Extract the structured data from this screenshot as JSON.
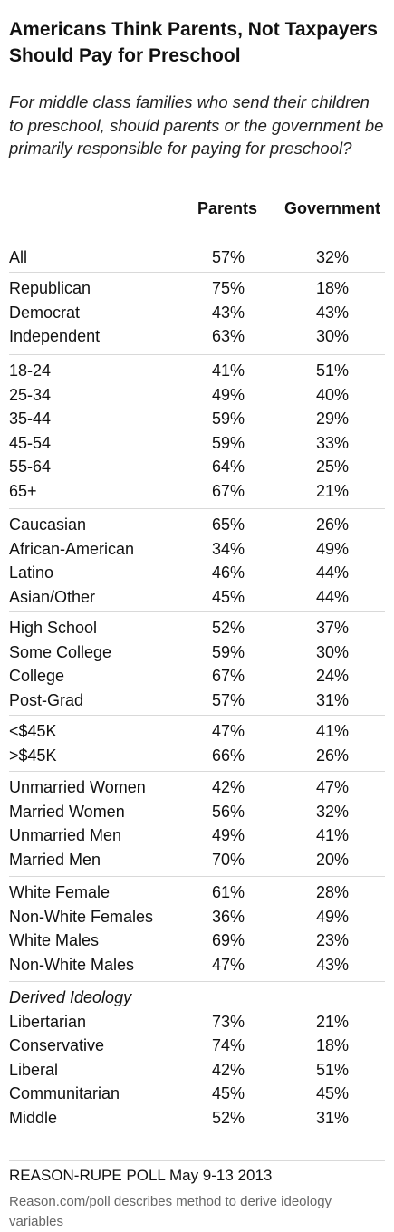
{
  "chart_data": {
    "type": "table",
    "title": "Americans Think Parents, Not Taxpayers Should Pay for Preschool",
    "subtitle": "For middle class families who send their children to preschool, should parents or the government be primarily responsible for paying for preschool?",
    "columns": [
      "Parents",
      "Government"
    ],
    "groups": [
      {
        "heading": "",
        "rows": [
          {
            "label": "All",
            "values": [
              "57%",
              "32%"
            ]
          }
        ]
      },
      {
        "heading": "",
        "rows": [
          {
            "label": "Republican",
            "values": [
              "75%",
              "18%"
            ]
          },
          {
            "label": "Democrat",
            "values": [
              "43%",
              "43%"
            ]
          },
          {
            "label": "Independent",
            "values": [
              "63%",
              "30%"
            ]
          }
        ]
      },
      {
        "heading": "",
        "rows": [
          {
            "label": "18-24",
            "values": [
              "41%",
              "51%"
            ]
          },
          {
            "label": "25-34",
            "values": [
              "49%",
              "40%"
            ]
          },
          {
            "label": "35-44",
            "values": [
              "59%",
              "29%"
            ]
          },
          {
            "label": "45-54",
            "values": [
              "59%",
              "33%"
            ]
          },
          {
            "label": "55-64",
            "values": [
              "64%",
              "25%"
            ]
          },
          {
            "label": "65+",
            "values": [
              "67%",
              "21%"
            ]
          }
        ]
      },
      {
        "heading": "",
        "rows": [
          {
            "label": "Caucasian",
            "values": [
              "65%",
              "26%"
            ]
          },
          {
            "label": "African-American",
            "values": [
              "34%",
              "49%"
            ]
          },
          {
            "label": "Latino",
            "values": [
              "46%",
              "44%"
            ]
          },
          {
            "label": "Asian/Other",
            "values": [
              "45%",
              "44%"
            ]
          }
        ]
      },
      {
        "heading": "",
        "rows": [
          {
            "label": "High School",
            "values": [
              "52%",
              "37%"
            ]
          },
          {
            "label": "Some College",
            "values": [
              "59%",
              "30%"
            ]
          },
          {
            "label": "College",
            "values": [
              "67%",
              "24%"
            ]
          },
          {
            "label": "Post-Grad",
            "values": [
              "57%",
              "31%"
            ]
          }
        ]
      },
      {
        "heading": "",
        "rows": [
          {
            "label": "<$45K",
            "values": [
              "47%",
              "41%"
            ]
          },
          {
            "label": ">$45K",
            "values": [
              "66%",
              "26%"
            ]
          }
        ]
      },
      {
        "heading": "",
        "rows": [
          {
            "label": "Unmarried Women",
            "values": [
              "42%",
              "47%"
            ]
          },
          {
            "label": "Married Women",
            "values": [
              "56%",
              "32%"
            ]
          },
          {
            "label": "Unmarried Men",
            "values": [
              "49%",
              "41%"
            ]
          },
          {
            "label": "Married Men",
            "values": [
              "70%",
              "20%"
            ]
          }
        ]
      },
      {
        "heading": "",
        "rows": [
          {
            "label": "White Female",
            "values": [
              "61%",
              "28%"
            ]
          },
          {
            "label": "Non-White Females",
            "values": [
              "36%",
              "49%"
            ]
          },
          {
            "label": "White Males",
            "values": [
              "69%",
              "23%"
            ]
          },
          {
            "label": "Non-White Males",
            "values": [
              "47%",
              "43%"
            ]
          }
        ]
      },
      {
        "heading": "Derived Ideology",
        "rows": [
          {
            "label": "Libertarian",
            "values": [
              "73%",
              "21%"
            ]
          },
          {
            "label": "Conservative",
            "values": [
              "74%",
              "18%"
            ]
          },
          {
            "label": "Liberal",
            "values": [
              "42%",
              "51%"
            ]
          },
          {
            "label": "Communitarian",
            "values": [
              "45%",
              "45%"
            ]
          },
          {
            "label": "Middle",
            "values": [
              "52%",
              "31%"
            ]
          }
        ]
      }
    ],
    "source": "REASON-RUPE POLL May 9-13 2013",
    "note": "Reason.com/poll describes method to derive ideology variables"
  }
}
